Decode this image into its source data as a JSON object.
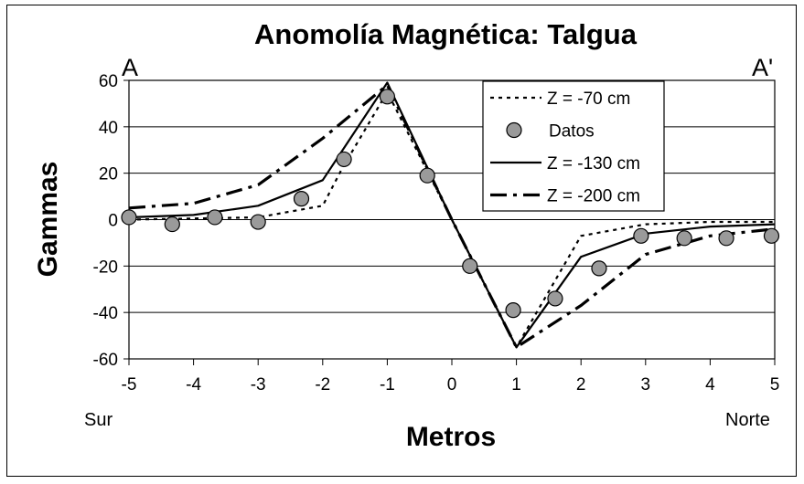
{
  "chart_data": {
    "type": "line",
    "title": "Anomolía Magnética: Talgua",
    "xlabel": "Metros",
    "ylabel": "Gammas",
    "xlim": [
      -5,
      5
    ],
    "ylim": [
      -60,
      60
    ],
    "xticks": [
      -5,
      -4,
      -3,
      -2,
      -1,
      0,
      1,
      2,
      3,
      4,
      5
    ],
    "yticks": [
      -60,
      -40,
      -20,
      0,
      20,
      40,
      60
    ],
    "grid": "horizontal",
    "legend_position": "top-right",
    "corner_labels": {
      "top_left": "A",
      "top_right": "A'"
    },
    "x_end_labels": {
      "left": "Sur",
      "right": "Norte"
    },
    "series": [
      {
        "name": "Z = -70 cm",
        "style": "dotted",
        "x": [
          -5,
          -3,
          -2,
          -1.7,
          -1,
          0,
          1,
          2,
          3,
          4,
          5
        ],
        "y": [
          0,
          1,
          6,
          22,
          55,
          0,
          -55,
          -7,
          -2,
          -1,
          -1
        ]
      },
      {
        "name": "Datos",
        "style": "markers",
        "x": [
          -5,
          -4.33,
          -3.67,
          -3,
          -2.33,
          -1.67,
          -1,
          -0.38,
          0.28,
          0.95,
          1.6,
          2.28,
          2.93,
          3.6,
          4.25,
          4.95
        ],
        "y": [
          1,
          -2,
          1,
          -1,
          9,
          26,
          53,
          19,
          -20,
          -39,
          -34,
          -21,
          -7,
          -8,
          -8,
          -7
        ]
      },
      {
        "name": "Z = -130 cm",
        "style": "solid",
        "x": [
          -5,
          -4,
          -3,
          -2,
          -1,
          0,
          1,
          2,
          3,
          4,
          5
        ],
        "y": [
          1,
          2,
          6,
          17,
          59,
          0,
          -55,
          -16,
          -6,
          -3,
          -2
        ]
      },
      {
        "name": "Z = -200 cm",
        "style": "dashdot",
        "x": [
          -5,
          -4,
          -3,
          -2,
          -1,
          0,
          1,
          2,
          3,
          4,
          5
        ],
        "y": [
          5,
          7,
          15,
          35,
          58,
          0,
          -55,
          -37,
          -15,
          -7,
          -4
        ]
      }
    ]
  }
}
